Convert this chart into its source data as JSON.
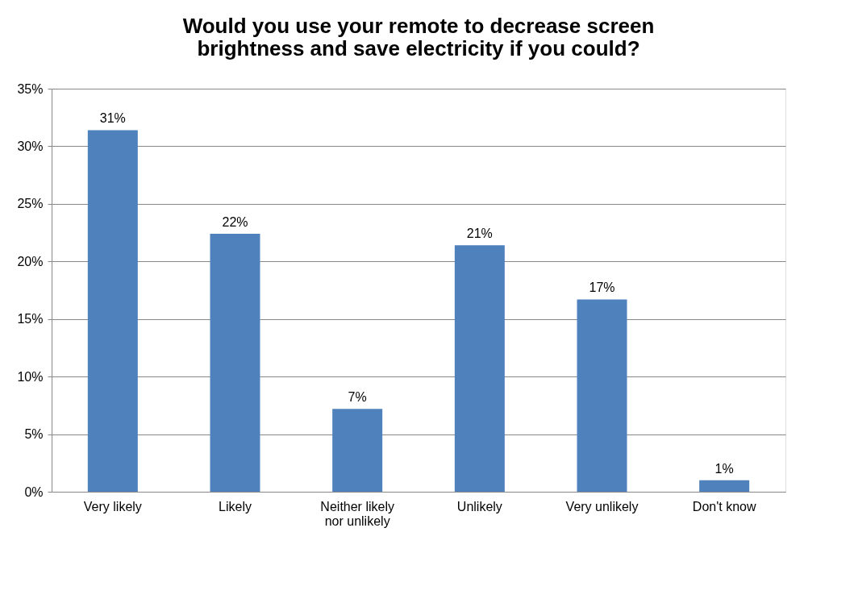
{
  "chart_data": {
    "type": "bar",
    "title": "Would you use your remote to decrease screen\nbrightness and save electricity if you could?",
    "categories": [
      "Very likely",
      "Likely",
      "Neither likely\nnor unlikely",
      "Unlikely",
      "Very unlikely",
      "Don't know"
    ],
    "values": [
      31.4,
      22.4,
      7.2,
      21.4,
      16.7,
      1.0
    ],
    "value_labels": [
      "31%",
      "22%",
      "7%",
      "21%",
      "17%",
      "1%"
    ],
    "color": "#4f81bd",
    "ylim": [
      0,
      35
    ],
    "yticks": [
      {
        "value": 0,
        "label": "0%"
      },
      {
        "value": 5,
        "label": "5%"
      },
      {
        "value": 10,
        "label": "10%"
      },
      {
        "value": 15,
        "label": "15%"
      },
      {
        "value": 20,
        "label": "20%"
      },
      {
        "value": 25,
        "label": "25%"
      },
      {
        "value": 30,
        "label": "30%"
      },
      {
        "value": 35,
        "label": "35%"
      }
    ],
    "grid": "y"
  }
}
